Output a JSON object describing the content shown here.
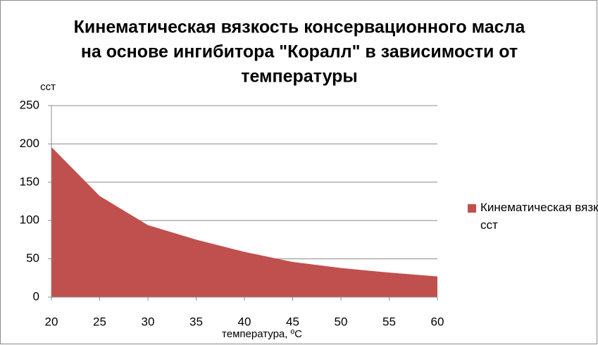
{
  "chart_data": {
    "type": "area",
    "title": [
      "Кинематическая вязкость консервационного масла",
      "на основе ингибитора \"Коралл\" в зависимости от",
      "температуры"
    ],
    "y_label": "сст",
    "x_label": "температура, ºC",
    "x": [
      20,
      25,
      30,
      35,
      40,
      45,
      50,
      55,
      60
    ],
    "series": [
      {
        "name": "Кинематическая вязкость, сст",
        "color": "#c0504d",
        "values": [
          196,
          132,
          94,
          75,
          59,
          46,
          38,
          32,
          27
        ]
      }
    ],
    "xlim": [
      20,
      60
    ],
    "xticks": [
      20,
      25,
      30,
      35,
      40,
      45,
      50,
      55,
      60
    ],
    "ylim": [
      0,
      250
    ],
    "yticks": [
      0,
      50,
      100,
      150,
      200,
      250
    ],
    "grid": true,
    "legend": "right"
  }
}
